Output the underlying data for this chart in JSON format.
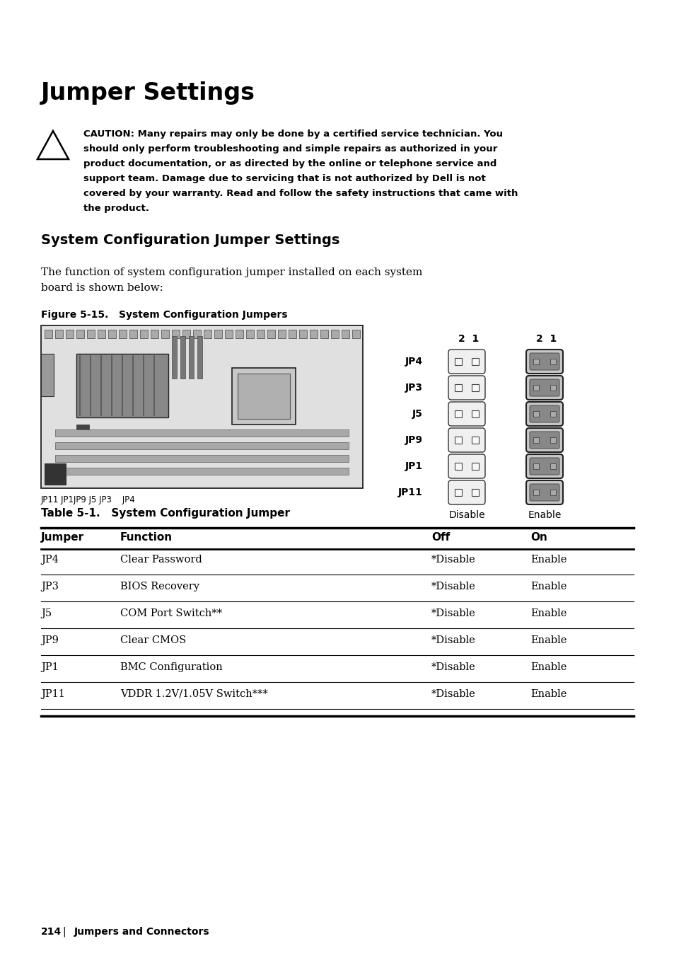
{
  "title": "Jumper Settings",
  "section_title": "System Configuration Jumper Settings",
  "caution_lines": [
    "CAUTION: Many repairs may only be done by a certified service technician. You",
    "should only perform troubleshooting and simple repairs as authorized in your",
    "product documentation, or as directed by the online or telephone service and",
    "support team. Damage due to servicing that is not authorized by Dell is not",
    "covered by your warranty. Read and follow the safety instructions that came with",
    "the product."
  ],
  "body_lines": [
    "The function of system configuration jumper installed on each system",
    "board is shown below:"
  ],
  "figure_label": "Figure 5-15.   System Configuration Jumpers",
  "figure_board_label": "JP11 JP1JP9 J5 JP3    JP4",
  "jumper_labels": [
    "JP4",
    "JP3",
    "J5",
    "JP9",
    "JP1",
    "JP11"
  ],
  "disable_label": "Disable",
  "enable_label": "Enable",
  "table_title": "Table 5-1.   System Configuration Jumper",
  "table_headers": [
    "Jumper",
    "Function",
    "Off",
    "On"
  ],
  "table_rows": [
    [
      "JP4",
      "Clear Password",
      "*Disable",
      "Enable"
    ],
    [
      "JP3",
      "BIOS Recovery",
      "*Disable",
      "Enable"
    ],
    [
      "J5",
      "COM Port Switch**",
      "*Disable",
      "Enable"
    ],
    [
      "JP9",
      "Clear CMOS",
      "*Disable",
      "Enable"
    ],
    [
      "JP1",
      "BMC Configuration",
      "*Disable",
      "Enable"
    ],
    [
      "JP11",
      "VDDR 1.2V/1.05V Switch***",
      "*Disable",
      "Enable"
    ]
  ],
  "footer_page": "214",
  "footer_section": "Jumpers and Connectors",
  "bg_color": "#ffffff",
  "text_color": "#000000"
}
